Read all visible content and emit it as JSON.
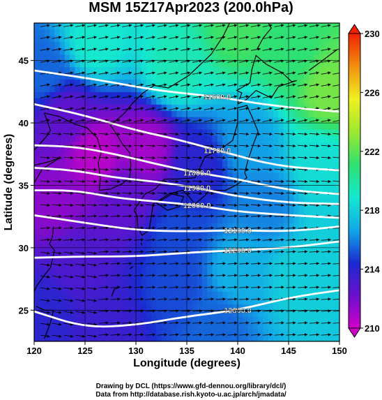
{
  "title": "MSM 15Z17Apr2023 (200.0hPa)",
  "xlabel": "Longitude (degrees)",
  "ylabel": "Latitude  (degrees)",
  "credit_line1": "Drawing by DCL (https://www.gfd-dennou.org/library/dcl/)",
  "credit_line2": "Data from http://database.rish.kyoto-u.ac.jp/arch/jmadata/",
  "x_ticks": [
    "120",
    "125",
    "130",
    "135",
    "140",
    "145",
    "150"
  ],
  "y_ticks": [
    "25",
    "30",
    "35",
    "40",
    "45"
  ],
  "colorbar_ticks": [
    "210",
    "214",
    "218",
    "222",
    "226",
    "230"
  ],
  "colors": {
    "scale": [
      "#d000c8",
      "#6a10cc",
      "#1a2ad0",
      "#12a8e8",
      "#14e8d0",
      "#30e070",
      "#9ee830",
      "#f0f020",
      "#f09010",
      "#f02000"
    ]
  },
  "chart_data": {
    "type": "map",
    "field": "temperature (K) with geopotential height contours and wind vectors",
    "xlim": [
      120,
      150
    ],
    "ylim": [
      22.5,
      48
    ],
    "colorbar": {
      "min": 210,
      "max": 230,
      "ticks": [
        210,
        214,
        218,
        222,
        226,
        230
      ]
    },
    "contours": [
      {
        "label": "11600.0",
        "pts": [
          [
            120,
            44.2
          ],
          [
            126,
            43.5
          ],
          [
            132,
            42.6
          ],
          [
            138,
            42.1
          ],
          [
            144,
            41.3
          ],
          [
            150,
            40.9
          ]
        ]
      },
      {
        "label": "11700.0",
        "pts": [
          [
            120,
            41.5
          ],
          [
            125,
            40.6
          ],
          [
            130,
            39.4
          ],
          [
            134,
            38.7
          ],
          [
            138,
            37.8
          ],
          [
            144,
            36.5
          ],
          [
            150,
            36.2
          ]
        ]
      },
      {
        "label": "11800.0",
        "pts": [
          [
            120,
            38.2
          ],
          [
            124,
            38.1
          ],
          [
            128,
            37.5
          ],
          [
            132,
            36.7
          ],
          [
            136,
            36.0
          ],
          [
            140,
            35.5
          ],
          [
            145,
            34.6
          ],
          [
            150,
            34.3
          ]
        ]
      },
      {
        "label": "11900.0",
        "pts": [
          [
            120,
            36.4
          ],
          [
            124,
            36.2
          ],
          [
            128,
            35.6
          ],
          [
            132,
            35.3
          ],
          [
            136,
            34.8
          ],
          [
            140,
            34.1
          ],
          [
            145,
            33.6
          ],
          [
            150,
            33.5
          ]
        ]
      },
      {
        "label": "12000.0",
        "pts": [
          [
            120,
            34.6
          ],
          [
            124,
            34.6
          ],
          [
            128,
            34.0
          ],
          [
            132,
            33.7
          ],
          [
            136,
            33.4
          ],
          [
            140,
            32.9
          ],
          [
            145,
            32.6
          ],
          [
            150,
            32.4
          ]
        ]
      },
      {
        "label": "12100.0",
        "pts": [
          [
            120,
            32.6
          ],
          [
            125,
            32.0
          ],
          [
            130,
            31.4
          ],
          [
            135,
            31.3
          ],
          [
            140,
            31.4
          ],
          [
            145,
            31.3
          ],
          [
            150,
            31.7
          ]
        ]
      },
      {
        "label": "12200.0",
        "pts": [
          [
            120,
            29.2
          ],
          [
            125,
            29.3
          ],
          [
            130,
            29.3
          ],
          [
            135,
            29.6
          ],
          [
            140,
            29.8
          ],
          [
            145,
            30.0
          ],
          [
            150,
            30.5
          ]
        ]
      },
      {
        "label": "12300.0",
        "pts": [
          [
            120,
            24.9
          ],
          [
            125,
            23.6
          ],
          [
            130,
            23.8
          ],
          [
            135,
            24.5
          ],
          [
            140,
            25.0
          ],
          [
            145,
            26.0
          ],
          [
            150,
            26.6
          ]
        ]
      }
    ],
    "temperature_anchors": [
      {
        "lon": 126,
        "lat": 37.5,
        "t": 210.5
      },
      {
        "lon": 131,
        "lat": 38.0,
        "t": 211.0
      },
      {
        "lon": 123,
        "lat": 40.5,
        "t": 212.5
      },
      {
        "lon": 122,
        "lat": 33.5,
        "t": 211.5
      },
      {
        "lon": 129,
        "lat": 34.0,
        "t": 212.5
      },
      {
        "lon": 136,
        "lat": 36.5,
        "t": 214.0
      },
      {
        "lon": 141,
        "lat": 38.5,
        "t": 216.5
      },
      {
        "lon": 121,
        "lat": 44.0,
        "t": 215.5
      },
      {
        "lon": 126,
        "lat": 46.5,
        "t": 219.0
      },
      {
        "lon": 134,
        "lat": 44.5,
        "t": 219.5
      },
      {
        "lon": 140,
        "lat": 47.5,
        "t": 221.5
      },
      {
        "lon": 145,
        "lat": 45.5,
        "t": 221.0
      },
      {
        "lon": 149,
        "lat": 42.5,
        "t": 222.5
      },
      {
        "lon": 148,
        "lat": 36.5,
        "t": 218.5
      },
      {
        "lon": 143,
        "lat": 33.5,
        "t": 216.0
      },
      {
        "lon": 134,
        "lat": 31.0,
        "t": 215.0
      },
      {
        "lon": 124,
        "lat": 29.0,
        "t": 213.0
      },
      {
        "lon": 121,
        "lat": 25.0,
        "t": 214.0
      },
      {
        "lon": 127,
        "lat": 23.5,
        "t": 213.5
      },
      {
        "lon": 134,
        "lat": 27.0,
        "t": 215.0
      },
      {
        "lon": 140,
        "lat": 28.0,
        "t": 217.0
      },
      {
        "lon": 146,
        "lat": 27.5,
        "t": 218.0
      },
      {
        "lon": 149,
        "lat": 31.5,
        "t": 218.0
      },
      {
        "lon": 138,
        "lat": 24.0,
        "t": 215.5
      }
    ]
  }
}
